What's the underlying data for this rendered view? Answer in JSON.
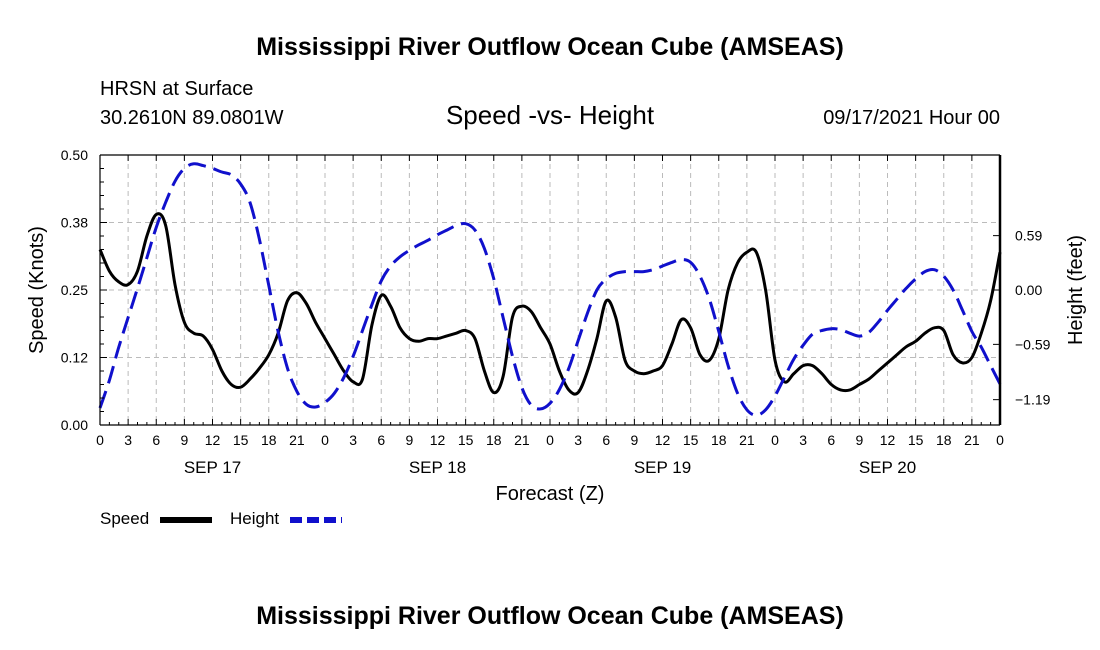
{
  "header": {
    "title_top": "Mississippi River Outflow Ocean Cube (AMSEAS)",
    "title_bottom": "Mississippi River Outflow Ocean Cube (AMSEAS)",
    "station": "HRSN at Surface",
    "location": "30.2610N  89.0801W",
    "chart_title": "Speed -vs- Height",
    "date": "09/17/2021 Hour 00"
  },
  "legend": {
    "speed_label": "Speed",
    "height_label": "Height"
  },
  "colors": {
    "speed": "#000000",
    "height": "#1010cc",
    "grid": "#bbbbbb"
  },
  "chart_data": {
    "type": "line",
    "title": "Speed -vs- Height",
    "xlabel": "Forecast (Z)",
    "ylabel": "Speed (Knots)",
    "y2label": "Height (feet)",
    "xlim": [
      0,
      96
    ],
    "ylim": [
      0,
      0.5
    ],
    "y2lim": [
      -1.465,
      1.465
    ],
    "grid": true,
    "legend_position": "bottom-left",
    "x_ticks": [
      0,
      3,
      6,
      9,
      12,
      15,
      18,
      21,
      24,
      27,
      30,
      33,
      36,
      39,
      42,
      45,
      48,
      51,
      54,
      57,
      60,
      63,
      66,
      69,
      72,
      75,
      78,
      81,
      84,
      87,
      90,
      93,
      96
    ],
    "x_tick_labels": [
      "0",
      "3",
      "6",
      "9",
      "12",
      "15",
      "18",
      "21",
      "0",
      "3",
      "6",
      "9",
      "12",
      "15",
      "18",
      "21",
      "0",
      "3",
      "6",
      "9",
      "12",
      "15",
      "18",
      "21",
      "0",
      "3",
      "6",
      "9",
      "12",
      "15",
      "18",
      "21",
      "0"
    ],
    "day_labels": [
      {
        "x": 12,
        "label": "SEP 17"
      },
      {
        "x": 36,
        "label": "SEP 18"
      },
      {
        "x": 60,
        "label": "SEP 19"
      },
      {
        "x": 84,
        "label": "SEP 20"
      }
    ],
    "y_ticks": [
      0,
      0.125,
      0.25,
      0.375,
      0.5
    ],
    "y_tick_labels": [
      "0.00",
      "0.12",
      "0.25",
      "0.38",
      "0.50"
    ],
    "y2_ticks": [
      -1.19,
      -0.59,
      0.0,
      0.59
    ],
    "y2_tick_labels": [
      "−1.19",
      "−0.59",
      "0.00",
      "0.59"
    ],
    "series": [
      {
        "name": "Speed",
        "axis": "left",
        "style": "solid",
        "x": [
          0,
          1,
          2,
          3,
          4,
          5,
          6,
          7,
          8,
          9,
          10,
          11,
          12,
          13,
          14,
          15,
          16,
          17,
          18,
          19,
          20,
          21,
          22,
          23,
          24,
          25,
          26,
          27,
          28,
          29,
          30,
          31,
          32,
          33,
          34,
          35,
          36,
          37,
          38,
          39,
          40,
          41,
          42,
          43,
          44,
          45,
          46,
          47,
          48,
          49,
          50,
          51,
          52,
          53,
          54,
          55,
          56,
          57,
          58,
          59,
          60,
          61,
          62,
          63,
          64,
          65,
          66,
          67,
          68,
          69,
          70,
          71,
          72,
          73,
          74,
          75,
          76,
          77,
          78,
          79,
          80,
          81,
          82,
          83,
          84,
          85,
          86,
          87,
          88,
          89,
          90,
          91,
          92,
          93,
          94,
          95,
          96
        ],
        "values": [
          0.325,
          0.285,
          0.265,
          0.26,
          0.285,
          0.35,
          0.39,
          0.37,
          0.26,
          0.19,
          0.17,
          0.165,
          0.14,
          0.1,
          0.075,
          0.07,
          0.085,
          0.105,
          0.13,
          0.17,
          0.23,
          0.245,
          0.225,
          0.19,
          0.16,
          0.13,
          0.1,
          0.08,
          0.085,
          0.185,
          0.24,
          0.22,
          0.18,
          0.16,
          0.155,
          0.16,
          0.16,
          0.165,
          0.17,
          0.175,
          0.16,
          0.1,
          0.06,
          0.09,
          0.2,
          0.22,
          0.21,
          0.18,
          0.15,
          0.1,
          0.065,
          0.06,
          0.1,
          0.16,
          0.23,
          0.2,
          0.12,
          0.1,
          0.095,
          0.1,
          0.11,
          0.15,
          0.195,
          0.18,
          0.13,
          0.12,
          0.16,
          0.25,
          0.3,
          0.32,
          0.32,
          0.25,
          0.12,
          0.08,
          0.095,
          0.11,
          0.11,
          0.095,
          0.075,
          0.065,
          0.065,
          0.075,
          0.085,
          0.1,
          0.115,
          0.13,
          0.145,
          0.155,
          0.17,
          0.18,
          0.175,
          0.13,
          0.115,
          0.125,
          0.17,
          0.23,
          0.32
        ]
      },
      {
        "name": "Height",
        "axis": "right",
        "style": "dashed",
        "x": [
          0,
          1,
          2,
          3,
          4,
          5,
          6,
          7,
          8,
          9,
          10,
          11,
          12,
          13,
          14,
          15,
          16,
          17,
          18,
          19,
          20,
          21,
          22,
          23,
          24,
          25,
          26,
          27,
          28,
          29,
          30,
          31,
          32,
          33,
          34,
          35,
          36,
          37,
          38,
          39,
          40,
          41,
          42,
          43,
          44,
          45,
          46,
          47,
          48,
          49,
          50,
          51,
          52,
          53,
          54,
          55,
          56,
          57,
          58,
          59,
          60,
          61,
          62,
          63,
          64,
          65,
          66,
          67,
          68,
          69,
          70,
          71,
          72,
          73,
          74,
          75,
          76,
          77,
          78,
          79,
          80,
          81,
          82,
          83,
          84,
          85,
          86,
          87,
          88,
          89,
          90,
          91,
          92,
          93,
          94,
          95,
          96
        ],
        "values": [
          -1.28,
          -0.98,
          -0.62,
          -0.3,
          0.02,
          0.35,
          0.68,
          0.95,
          1.18,
          1.32,
          1.37,
          1.35,
          1.32,
          1.28,
          1.25,
          1.15,
          0.95,
          0.55,
          0.05,
          -0.45,
          -0.85,
          -1.1,
          -1.24,
          -1.27,
          -1.22,
          -1.12,
          -0.95,
          -0.72,
          -0.44,
          -0.16,
          0.1,
          0.26,
          0.36,
          0.43,
          0.49,
          0.54,
          0.6,
          0.65,
          0.7,
          0.72,
          0.65,
          0.45,
          0.12,
          -0.3,
          -0.72,
          -1.06,
          -1.25,
          -1.29,
          -1.23,
          -1.08,
          -0.85,
          -0.55,
          -0.25,
          0.0,
          0.12,
          0.18,
          0.2,
          0.2,
          0.2,
          0.22,
          0.26,
          0.3,
          0.33,
          0.3,
          0.15,
          -0.1,
          -0.45,
          -0.82,
          -1.12,
          -1.3,
          -1.36,
          -1.3,
          -1.15,
          -0.95,
          -0.75,
          -0.6,
          -0.48,
          -0.44,
          -0.42,
          -0.43,
          -0.47,
          -0.5,
          -0.46,
          -0.35,
          -0.22,
          -0.1,
          0.02,
          0.12,
          0.2,
          0.22,
          0.15,
          0.0,
          -0.22,
          -0.45,
          -0.62,
          -0.82,
          -1.02
        ]
      }
    ]
  }
}
